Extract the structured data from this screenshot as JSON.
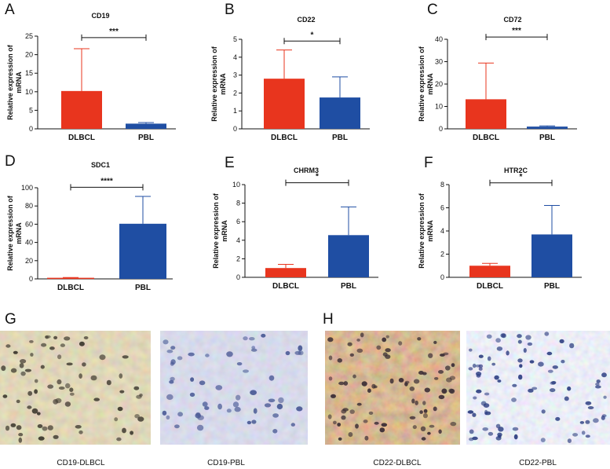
{
  "colors": {
    "red": "#e8351e",
    "blue": "#1f4ea3",
    "axis": "#111111"
  },
  "chart_data": [
    {
      "id": "A",
      "panel_label": "A",
      "type": "bar",
      "title": "CD19",
      "categories": [
        "DLBCL",
        "PBL"
      ],
      "values": [
        10.2,
        1.4
      ],
      "errors": [
        11.4,
        0.3
      ],
      "yticks": [
        "0",
        "5",
        "10",
        "15",
        "20",
        "25"
      ],
      "ylim": [
        0,
        25
      ],
      "ylabel_line1": "Relative expression of",
      "ylabel_line2": "mRNA",
      "significance": "***",
      "sig_y": 24.6
    },
    {
      "id": "B",
      "panel_label": "B",
      "type": "bar",
      "title": "CD22",
      "categories": [
        "DLBCL",
        "PBL"
      ],
      "values": [
        2.8,
        1.75
      ],
      "errors": [
        1.6,
        1.15
      ],
      "yticks": [
        "0",
        "1",
        "2",
        "3",
        "4",
        "5"
      ],
      "ylim": [
        0,
        5
      ],
      "ylabel_line1": "Relative expression of",
      "ylabel_line2": "mRNA",
      "significance": "*",
      "sig_y": 4.9
    },
    {
      "id": "C",
      "panel_label": "C",
      "type": "bar",
      "title": "CD72",
      "categories": [
        "DLBCL",
        "PBL"
      ],
      "values": [
        13.2,
        1.0
      ],
      "errors": [
        16.2,
        0.3
      ],
      "yticks": [
        "0",
        "10",
        "20",
        "30",
        "40"
      ],
      "ylim": [
        0,
        40
      ],
      "ylabel_line1": "Relative expression of",
      "ylabel_line2": "mRNA",
      "significance": "***",
      "sig_y": 41.0
    },
    {
      "id": "D",
      "panel_label": "D",
      "type": "bar",
      "title": "SDC1",
      "categories": [
        "DLBCL",
        "PBL"
      ],
      "values": [
        1.2,
        60.5
      ],
      "errors": [
        0.3,
        30.0
      ],
      "yticks": [
        "0",
        "20",
        "40",
        "60",
        "80",
        "100"
      ],
      "ylim": [
        0,
        100
      ],
      "ylabel_line1": "Relative expression of",
      "ylabel_line2": "mRNA",
      "significance": "****",
      "sig_y": 100.5
    },
    {
      "id": "E",
      "panel_label": "E",
      "type": "bar",
      "title": "CHRM3",
      "categories": [
        "DLBCL",
        "PBL"
      ],
      "values": [
        1.0,
        4.55
      ],
      "errors": [
        0.4,
        3.05
      ],
      "yticks": [
        "0",
        "2",
        "4",
        "6",
        "8",
        "10"
      ],
      "ylim": [
        0,
        10
      ],
      "ylabel_line1": "Relative expression of",
      "ylabel_line2": "mRNA",
      "significance": "*",
      "sig_y": 10.2
    },
    {
      "id": "F",
      "panel_label": "F",
      "type": "bar",
      "title": "HTR2C",
      "categories": [
        "DLBCL",
        "PBL"
      ],
      "values": [
        1.0,
        3.7
      ],
      "errors": [
        0.2,
        2.5
      ],
      "yticks": [
        "0",
        "2",
        "4",
        "6",
        "8"
      ],
      "ylim": [
        0,
        8
      ],
      "ylabel_line1": "Relative expression of",
      "ylabel_line2": "mRNA",
      "significance": "*",
      "sig_y": 8.15
    }
  ],
  "micrographs": {
    "label_g": "G",
    "label_h": "H",
    "captions": [
      "CD19-DLBCL",
      "CD19-PBL",
      "CD22-DLBCL",
      "CD22-PBL"
    ]
  }
}
